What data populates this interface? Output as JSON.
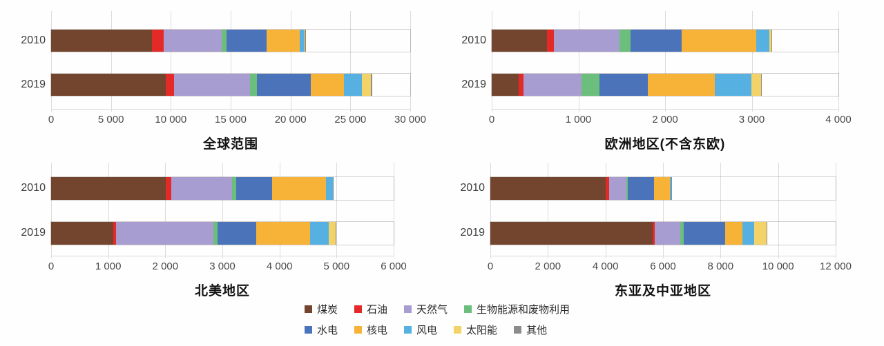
{
  "chart_data": {
    "type": "bar",
    "stacked": true,
    "orientation": "horizontal",
    "grid": "vertical",
    "series_names": [
      "煤炭",
      "石油",
      "天然气",
      "生物能源和废物利用",
      "水电",
      "核电",
      "风电",
      "太阳能",
      "其他"
    ],
    "series_colors": [
      "#73452F",
      "#E32A26",
      "#A89DD1",
      "#6CBE7C",
      "#4A73BA",
      "#F7B238",
      "#56B1E2",
      "#F3D368",
      "#8C8C8C"
    ],
    "gridline_color": "#dcdcdc",
    "charts": [
      {
        "id": "global",
        "title": "全球范围",
        "xlim": [
          0,
          30000
        ],
        "tick_step": 5000,
        "tick_labels": [
          "0",
          "5 000",
          "10 000",
          "15 000",
          "20 000",
          "25 000",
          "30 000"
        ],
        "categories": [
          "2010",
          "2019"
        ],
        "series": [
          {
            "name": "煤炭",
            "values": [
              8440,
              9590
            ]
          },
          {
            "name": "石油",
            "values": [
              960,
              690
            ]
          },
          {
            "name": "天然气",
            "values": [
              4860,
              6340
            ]
          },
          {
            "name": "生物能源和废物利用",
            "values": [
              380,
              580
            ]
          },
          {
            "name": "水电",
            "values": [
              3360,
              4520
            ]
          },
          {
            "name": "核电",
            "values": [
              2790,
              2770
            ]
          },
          {
            "name": "风电",
            "values": [
              330,
              1500
            ]
          },
          {
            "name": "太阳能",
            "values": [
              30,
              700
            ]
          },
          {
            "name": "其他",
            "values": [
              150,
              150
            ]
          }
        ]
      },
      {
        "id": "europe",
        "title": "欧洲地区(不含东欧)",
        "xlim": [
          0,
          4000
        ],
        "tick_step": 1000,
        "tick_labels": [
          "0",
          "1 000",
          "2 000",
          "3 000",
          "4 000"
        ],
        "categories": [
          "2010",
          "2019"
        ],
        "series": [
          {
            "name": "煤炭",
            "values": [
              640,
              310
            ]
          },
          {
            "name": "石油",
            "values": [
              75,
              60
            ]
          },
          {
            "name": "天然气",
            "values": [
              760,
              670
            ]
          },
          {
            "name": "生物能源和废物利用",
            "values": [
              130,
              200
            ]
          },
          {
            "name": "水电",
            "values": [
              590,
              560
            ]
          },
          {
            "name": "核电",
            "values": [
              860,
              775
            ]
          },
          {
            "name": "风电",
            "values": [
              150,
              420
            ]
          },
          {
            "name": "太阳能",
            "values": [
              20,
              110
            ]
          },
          {
            "name": "其他",
            "values": [
              10,
              15
            ]
          }
        ]
      },
      {
        "id": "north-america",
        "title": "北美地区",
        "xlim": [
          0,
          6000
        ],
        "tick_step": 1000,
        "tick_labels": [
          "0",
          "1 000",
          "2 000",
          "3 000",
          "4 000",
          "5 000",
          "6 000"
        ],
        "categories": [
          "2010",
          "2019"
        ],
        "series": [
          {
            "name": "煤炭",
            "values": [
              2010,
              1090
            ]
          },
          {
            "name": "石油",
            "values": [
              90,
              50
            ]
          },
          {
            "name": "天然气",
            "values": [
              1070,
              1700
            ]
          },
          {
            "name": "生物能源和废物利用",
            "values": [
              70,
              80
            ]
          },
          {
            "name": "水电",
            "values": [
              630,
              670
            ]
          },
          {
            "name": "核电",
            "values": [
              950,
              950
            ]
          },
          {
            "name": "风电",
            "values": [
              110,
              320
            ]
          },
          {
            "name": "太阳能",
            "values": [
              5,
              120
            ]
          },
          {
            "name": "其他",
            "values": [
              5,
              10
            ]
          }
        ]
      },
      {
        "id": "east-asia",
        "title": "东亚及中亚地区",
        "xlim": [
          0,
          12000
        ],
        "tick_step": 2000,
        "tick_labels": [
          "0",
          "2 000",
          "4 000",
          "6 000",
          "8 000",
          "10 000",
          "12 000"
        ],
        "categories": [
          "2010",
          "2019"
        ],
        "series": [
          {
            "name": "煤炭",
            "values": [
              4000,
              5650
            ]
          },
          {
            "name": "石油",
            "values": [
              120,
              60
            ]
          },
          {
            "name": "天然气",
            "values": [
              600,
              880
            ]
          },
          {
            "name": "生物能源和废物利用",
            "values": [
              50,
              140
            ]
          },
          {
            "name": "水电",
            "values": [
              920,
              1430
            ]
          },
          {
            "name": "核电",
            "values": [
              560,
              610
            ]
          },
          {
            "name": "风电",
            "values": [
              40,
              410
            ]
          },
          {
            "name": "太阳能",
            "values": [
              0,
              420
            ]
          },
          {
            "name": "其他",
            "values": [
              10,
              20
            ]
          }
        ]
      }
    ],
    "legend": {
      "position": "bottom-center",
      "rows": [
        [
          "煤炭",
          "石油",
          "天然气",
          "生物能源和废物利用"
        ],
        [
          "水电",
          "核电",
          "风电",
          "太阳能",
          "其他"
        ]
      ]
    }
  }
}
